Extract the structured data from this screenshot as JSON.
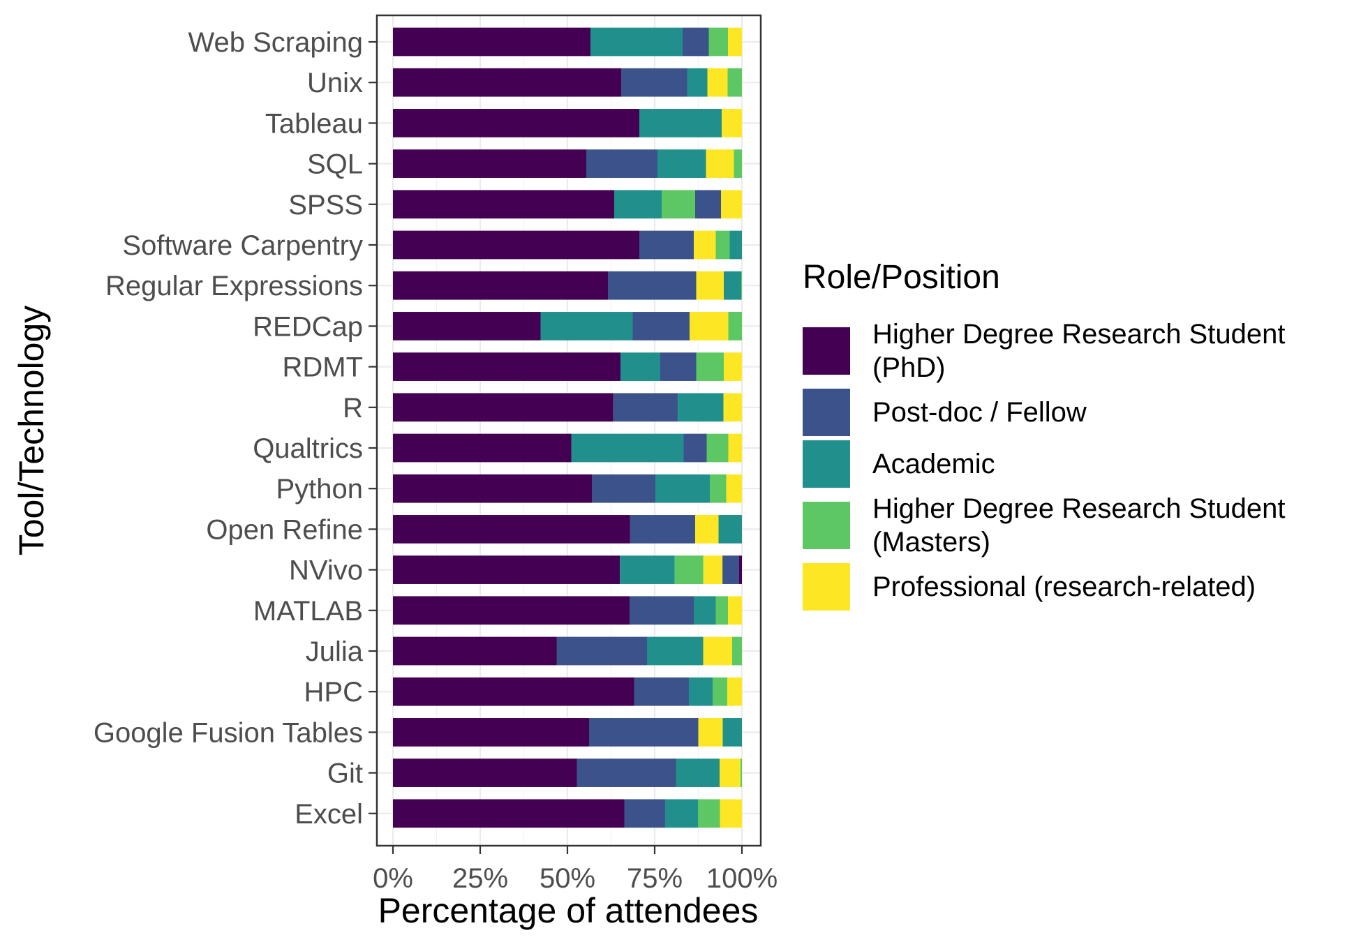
{
  "chart_data": {
    "type": "bar",
    "orientation": "horizontal",
    "stacked": true,
    "normalized": true,
    "title": "",
    "xlabel": "Percentage of attendees",
    "ylabel": "Tool/Technology",
    "xlim": [
      0,
      1
    ],
    "xticks": [
      "0%",
      "25%",
      "50%",
      "75%",
      "100%"
    ],
    "grid": true,
    "legend_placement": "right",
    "legend_title": "Role/Position",
    "categories": [
      "Web Scraping",
      "Unix",
      "Tableau",
      "SQL",
      "SPSS",
      "Software Carpentry",
      "Regular Expressions",
      "REDCap",
      "RDMT",
      "R",
      "Qualtrics",
      "Python",
      "Open Refine",
      "NVivo",
      "MATLAB",
      "Julia",
      "HPC",
      "Google Fusion Tables",
      "Git",
      "Excel"
    ],
    "series": [
      {
        "name": "Higher Degree Research Student\n(PhD)",
        "color": "#440154",
        "values": [
          0.566,
          0.654,
          0.706,
          0.554,
          0.634,
          0.706,
          0.616,
          0.423,
          0.652,
          0.598,
          0.511,
          0.57,
          0.679,
          0.642,
          0.678,
          0.469,
          0.691,
          0.562,
          0.527,
          0.663
        ]
      },
      {
        "name": "Post-doc / Fellow",
        "color": "#3B528B",
        "values": [
          0.075,
          0.189,
          0.0,
          0.204,
          0.074,
          0.156,
          0.253,
          0.163,
          0.103,
          0.175,
          0.066,
          0.182,
          0.187,
          0.047,
          0.184,
          0.259,
          0.157,
          0.313,
          0.284,
          0.117
        ]
      },
      {
        "name": "Academic",
        "color": "#21908C",
        "values": [
          0.264,
          0.058,
          0.236,
          0.139,
          0.136,
          0.0,
          0.0,
          0.264,
          0.114,
          0.124,
          0.322,
          0.156,
          0.0,
          0.155,
          0.0,
          0.161,
          0.0,
          0.0,
          0.125,
          0.094
        ]
      },
      {
        "name": "Higher Degree Research Student\n(Masters)",
        "color": "#5DC863",
        "values": [
          0.055,
          0.0,
          0.0,
          0.0,
          0.096,
          0.0,
          0.0,
          0.0,
          0.079,
          0.0,
          0.062,
          0.047,
          0.0,
          0.081,
          0.0,
          0.0,
          0.0,
          0.0,
          0.0,
          0.063
        ]
      },
      {
        "name": "Professional (research-related)",
        "color": "#FDE725",
        "values": [
          0.04,
          0.058,
          0.058,
          0.08,
          0.06,
          0.063,
          0.079,
          0.111,
          0.052,
          0.05,
          0.039,
          0.045,
          0.067,
          0.054,
          0.04,
          0.083,
          0.042,
          0.07,
          0.06,
          0.063
        ]
      }
    ],
    "extra_segments": {
      "comment_free": true,
      "Unix": [
        {
          "color": "#5DC863",
          "value": 0.041
        }
      ],
      "SQL": [
        {
          "color": "#5DC863",
          "value": 0.023
        }
      ],
      "Software Carpentry": [
        {
          "color": "#5DC863",
          "value": 0.04
        },
        {
          "color": "#21908C",
          "value": 0.035
        }
      ],
      "Regular Expressions": [
        {
          "color": "#21908C",
          "value": 0.05
        },
        {
          "color": "#5DC863",
          "value": 0.002
        }
      ],
      "REDCap": [
        {
          "color": "#5DC863",
          "value": 0.039
        }
      ],
      "R": [],
      "Open Refine": [
        {
          "color": "#21908C",
          "value": 0.067
        }
      ],
      "NVivo": [
        {
          "color": "#3B528B",
          "value": 0.021
        }
      ],
      "MATLAB": [
        {
          "color": "#21908C",
          "value": 0.063
        },
        {
          "color": "#5DC863",
          "value": 0.035
        }
      ],
      "Julia": [
        {
          "color": "#5DC863",
          "value": 0.028
        }
      ],
      "HPC": [
        {
          "color": "#21908C",
          "value": 0.068
        },
        {
          "color": "#5DC863",
          "value": 0.042
        }
      ],
      "Google Fusion Tables": [
        {
          "color": "#21908C",
          "value": 0.055
        }
      ],
      "Git": [
        {
          "color": "#5DC863",
          "value": 0.004
        }
      ],
      "Excel": []
    }
  }
}
